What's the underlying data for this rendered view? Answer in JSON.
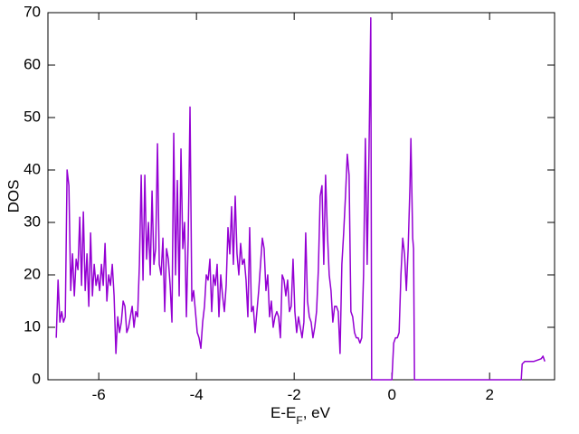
{
  "chart_data": {
    "type": "line",
    "xlabel": [
      "E-E",
      "F",
      ", eV"
    ],
    "ylabel": "DOS",
    "xlim": [
      -7.04,
      3.33
    ],
    "ylim": [
      0,
      70
    ],
    "xticks": [
      -6,
      -4,
      -2,
      0,
      2
    ],
    "yticks": [
      0,
      10,
      20,
      30,
      40,
      50,
      60,
      70
    ],
    "grid": false,
    "series": [
      {
        "color": "#9400d3",
        "x": [
          -6.87,
          -6.833,
          -6.796,
          -6.759,
          -6.722,
          -6.685,
          -6.648,
          -6.611,
          -6.574,
          -6.537,
          -6.5,
          -6.463,
          -6.426,
          -6.389,
          -6.352,
          -6.315,
          -6.278,
          -6.241,
          -6.204,
          -6.167,
          -6.13,
          -6.093,
          -6.056,
          -6.019,
          -5.982,
          -5.945,
          -5.908,
          -5.871,
          -5.834,
          -5.797,
          -5.76,
          -5.723,
          -5.686,
          -5.649,
          -5.612,
          -5.575,
          -5.538,
          -5.501,
          -5.464,
          -5.427,
          -5.39,
          -5.353,
          -5.316,
          -5.279,
          -5.242,
          -5.205,
          -5.168,
          -5.131,
          -5.094,
          -5.057,
          -5.02,
          -4.983,
          -4.946,
          -4.909,
          -4.872,
          -4.835,
          -4.798,
          -4.761,
          -4.724,
          -4.687,
          -4.65,
          -4.613,
          -4.576,
          -4.539,
          -4.502,
          -4.465,
          -4.428,
          -4.391,
          -4.354,
          -4.317,
          -4.28,
          -4.243,
          -4.206,
          -4.169,
          -4.132,
          -4.095,
          -4.058,
          -4.021,
          -3.984,
          -3.947,
          -3.91,
          -3.873,
          -3.836,
          -3.799,
          -3.762,
          -3.725,
          -3.688,
          -3.651,
          -3.614,
          -3.577,
          -3.54,
          -3.503,
          -3.466,
          -3.429,
          -3.392,
          -3.355,
          -3.318,
          -3.281,
          -3.244,
          -3.207,
          -3.17,
          -3.133,
          -3.096,
          -3.059,
          -3.022,
          -2.985,
          -2.948,
          -2.911,
          -2.874,
          -2.837,
          -2.8,
          -2.763,
          -2.726,
          -2.689,
          -2.652,
          -2.615,
          -2.578,
          -2.541,
          -2.504,
          -2.467,
          -2.43,
          -2.393,
          -2.356,
          -2.319,
          -2.282,
          -2.245,
          -2.208,
          -2.171,
          -2.134,
          -2.097,
          -2.06,
          -2.023,
          -1.986,
          -1.949,
          -1.912,
          -1.875,
          -1.838,
          -1.801,
          -1.764,
          -1.727,
          -1.69,
          -1.653,
          -1.616,
          -1.579,
          -1.542,
          -1.505,
          -1.468,
          -1.431,
          -1.394,
          -1.357,
          -1.32,
          -1.283,
          -1.246,
          -1.209,
          -1.172,
          -1.135,
          -1.098,
          -1.061,
          -1.024,
          -0.987,
          -0.95,
          -0.913,
          -0.876,
          -0.839,
          -0.802,
          -0.765,
          -0.728,
          -0.691,
          -0.654,
          -0.617,
          -0.58,
          -0.543,
          -0.506,
          -0.469,
          -0.432,
          -0.414,
          0.0,
          0.037,
          0.074,
          0.111,
          0.148,
          0.185,
          0.222,
          0.259,
          0.296,
          0.333,
          0.37,
          0.389,
          0.426,
          0.444,
          0.463,
          2.648,
          2.667,
          2.722,
          2.907,
          3.056,
          3.093,
          3.13
        ],
        "values": [
          8,
          19,
          11,
          13,
          11,
          12,
          40,
          37,
          17,
          24,
          16,
          23,
          21,
          31,
          18,
          32,
          17,
          24,
          14,
          28,
          16,
          22,
          18,
          20,
          17,
          22,
          18,
          26,
          15,
          20,
          18,
          22,
          16,
          5,
          12,
          9,
          11,
          15,
          14,
          9,
          10,
          12,
          14,
          10,
          13,
          12,
          22,
          39,
          19,
          39,
          23,
          30,
          20,
          36,
          22,
          25,
          45,
          22,
          20,
          27,
          13,
          25,
          23,
          18,
          11,
          47,
          20,
          38,
          16,
          44,
          25,
          30,
          12,
          27,
          52,
          15,
          17,
          13,
          9,
          8,
          6,
          11,
          14,
          20,
          19,
          23,
          13,
          20,
          18,
          22,
          12,
          20,
          16,
          13,
          18,
          29,
          24,
          33,
          22,
          35,
          24,
          20,
          26,
          22,
          23,
          19,
          12,
          29,
          13,
          14,
          9,
          13,
          17,
          22,
          27,
          25,
          17,
          20,
          12,
          15,
          10,
          12,
          13,
          12,
          8,
          20,
          19,
          16,
          19,
          13,
          14,
          23,
          13,
          9,
          12,
          10,
          8,
          11,
          28,
          15,
          12,
          11,
          8,
          10,
          13,
          21,
          35,
          37,
          22,
          39,
          28,
          20,
          17,
          11,
          14,
          14,
          13,
          5,
          22,
          28,
          35,
          43,
          39,
          13,
          12,
          9,
          8,
          8,
          7,
          8,
          20,
          46,
          22,
          43,
          69,
          0,
          0,
          7,
          8,
          8,
          9,
          20,
          27,
          24,
          17,
          25,
          37,
          46,
          27,
          25,
          0,
          0,
          3,
          3.5,
          3.5,
          4,
          4.5,
          3.5
        ]
      }
    ]
  }
}
